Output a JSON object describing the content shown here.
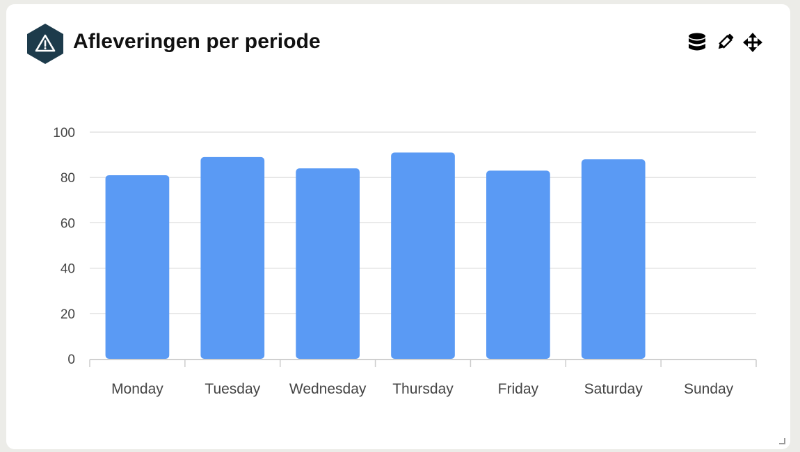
{
  "widget": {
    "title": "Afleveringen per periode",
    "icon": "warning-hexagon-icon",
    "icon_color": "#1d3b4b",
    "toolbar": [
      {
        "name": "database-icon"
      },
      {
        "name": "pencil-icon"
      },
      {
        "name": "move-icon"
      }
    ]
  },
  "chart_data": {
    "type": "bar",
    "title": "",
    "xlabel": "",
    "ylabel": "",
    "categories": [
      "Monday",
      "Tuesday",
      "Wednesday",
      "Thursday",
      "Friday",
      "Saturday",
      "Sunday"
    ],
    "values": [
      81,
      89,
      84,
      91,
      83,
      88,
      0
    ],
    "ylim": [
      0,
      100
    ],
    "yticks": [
      0,
      20,
      40,
      60,
      80,
      100
    ],
    "grid": true,
    "legend": "none",
    "bar_color": "#5a9af4"
  }
}
